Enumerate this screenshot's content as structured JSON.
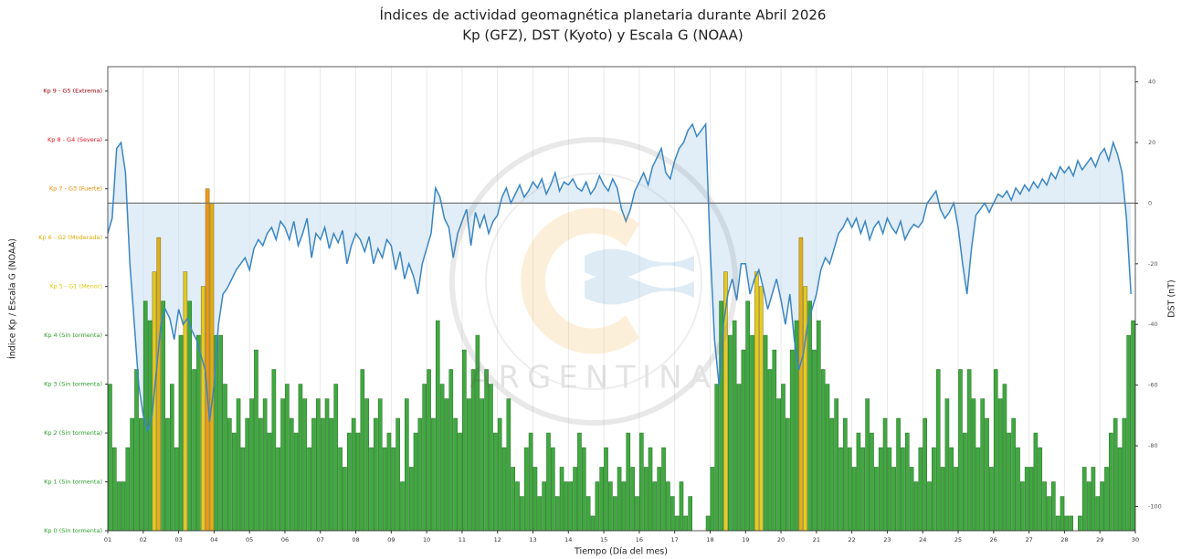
{
  "chart_data": {
    "type": "kp-dst",
    "title": "Índices de actividad geomagnética planetaria durante Abril 2026",
    "subtitle": "Kp (GFZ), DST (Kyoto) y Escala G (NOAA)",
    "xlabel": "Tiempo (Día del mes)",
    "ylabel": "Índice Kp / Escala G (NOAA)",
    "y2label": "DST (nT)",
    "watermark": "ARGENTINA",
    "grid": true,
    "xlim": [
      1,
      30
    ],
    "ylim": [
      0,
      9.5
    ],
    "y2lim": [
      -108,
      45
    ],
    "reference_line": 0,
    "xticks": [
      {
        "value": 1,
        "label": "01"
      },
      {
        "value": 2,
        "label": "02"
      },
      {
        "value": 3,
        "label": "03"
      },
      {
        "value": 4,
        "label": "04"
      },
      {
        "value": 5,
        "label": "05"
      },
      {
        "value": 6,
        "label": "06"
      },
      {
        "value": 7,
        "label": "07"
      },
      {
        "value": 8,
        "label": "08"
      },
      {
        "value": 9,
        "label": "09"
      },
      {
        "value": 10,
        "label": "10"
      },
      {
        "value": 11,
        "label": "11"
      },
      {
        "value": 12,
        "label": "12"
      },
      {
        "value": 13,
        "label": "13"
      },
      {
        "value": 14,
        "label": "14"
      },
      {
        "value": 15,
        "label": "15"
      },
      {
        "value": 16,
        "label": "16"
      },
      {
        "value": 17,
        "label": "17"
      },
      {
        "value": 18,
        "label": "18"
      },
      {
        "value": 19,
        "label": "19"
      },
      {
        "value": 20,
        "label": "20"
      },
      {
        "value": 21,
        "label": "21"
      },
      {
        "value": 22,
        "label": "22"
      },
      {
        "value": 23,
        "label": "23"
      },
      {
        "value": 24,
        "label": "24"
      },
      {
        "value": 25,
        "label": "25"
      },
      {
        "value": 26,
        "label": "26"
      },
      {
        "value": 27,
        "label": "27"
      },
      {
        "value": 28,
        "label": "28"
      },
      {
        "value": 29,
        "label": "29"
      },
      {
        "value": 30,
        "label": "30"
      }
    ],
    "yticks": [
      {
        "value": 0,
        "label": "Kp 0 (Sin tormenta)"
      },
      {
        "value": 1,
        "label": "Kp 1 (Sin tormenta)"
      },
      {
        "value": 2,
        "label": "Kp 2 (Sin tormenta)"
      },
      {
        "value": 3,
        "label": "Kp 3 (Sin tormenta)"
      },
      {
        "value": 4,
        "label": "Kp 4 (Sin tormenta)"
      },
      {
        "value": 5,
        "label": "Kp 5 - G1 (Menor)"
      },
      {
        "value": 6,
        "label": "Kp 6 - G2 (Moderada)"
      },
      {
        "value": 7,
        "label": "Kp 7 - G3 (Fuerte)"
      },
      {
        "value": 8,
        "label": "Kp 8 - G4 (Severa)"
      },
      {
        "value": 9,
        "label": "Kp 9 - G5 (Extrema)"
      }
    ],
    "ytick_colors": [
      "#2ca02c",
      "#2ca02c",
      "#2ca02c",
      "#2ca02c",
      "#2ca02c",
      "#e0c80c",
      "#e0a800",
      "#f08c00",
      "#e8141c",
      "#a00010"
    ],
    "y2ticks": [
      -100,
      -80,
      -60,
      -40,
      -20,
      0,
      20,
      40
    ],
    "x": [
      1,
      1.125,
      1.25,
      1.375,
      1.5,
      1.625,
      1.75,
      1.875,
      2,
      2.125,
      2.25,
      2.375,
      2.5,
      2.625,
      2.75,
      2.875,
      3,
      3.125,
      3.25,
      3.375,
      3.5,
      3.625,
      3.75,
      3.875,
      4,
      4.125,
      4.25,
      4.375,
      4.5,
      4.625,
      4.75,
      4.875,
      5,
      5.125,
      5.25,
      5.375,
      5.5,
      5.625,
      5.75,
      5.875,
      6,
      6.125,
      6.25,
      6.375,
      6.5,
      6.625,
      6.75,
      6.875,
      7,
      7.125,
      7.25,
      7.375,
      7.5,
      7.625,
      7.75,
      7.875,
      8,
      8.125,
      8.25,
      8.375,
      8.5,
      8.625,
      8.75,
      8.875,
      9,
      9.125,
      9.25,
      9.375,
      9.5,
      9.625,
      9.75,
      9.875,
      10,
      10.125,
      10.25,
      10.375,
      10.5,
      10.625,
      10.75,
      10.875,
      11,
      11.125,
      11.25,
      11.375,
      11.5,
      11.625,
      11.75,
      11.875,
      12,
      12.125,
      12.25,
      12.375,
      12.5,
      12.625,
      12.75,
      12.875,
      13,
      13.125,
      13.25,
      13.375,
      13.5,
      13.625,
      13.75,
      13.875,
      14,
      14.125,
      14.25,
      14.375,
      14.5,
      14.625,
      14.75,
      14.875,
      15,
      15.125,
      15.25,
      15.375,
      15.5,
      15.625,
      15.75,
      15.875,
      16,
      16.125,
      16.25,
      16.375,
      16.5,
      16.625,
      16.75,
      16.875,
      17,
      17.125,
      17.25,
      17.375,
      17.5,
      17.625,
      17.75,
      17.875,
      18,
      18.125,
      18.25,
      18.375,
      18.5,
      18.625,
      18.75,
      18.875,
      19,
      19.125,
      19.25,
      19.375,
      19.5,
      19.625,
      19.75,
      19.875,
      20,
      20.125,
      20.25,
      20.375,
      20.5,
      20.625,
      20.75,
      20.875,
      21,
      21.125,
      21.25,
      21.375,
      21.5,
      21.625,
      21.75,
      21.875,
      22,
      22.125,
      22.25,
      22.375,
      22.5,
      22.625,
      22.75,
      22.875,
      23,
      23.125,
      23.25,
      23.375,
      23.5,
      23.625,
      23.75,
      23.875,
      24,
      24.125,
      24.25,
      24.375,
      24.5,
      24.625,
      24.75,
      24.875,
      25,
      25.125,
      25.25,
      25.375,
      25.5,
      25.625,
      25.75,
      25.875,
      26,
      26.125,
      26.25,
      26.375,
      26.5,
      26.625,
      26.75,
      26.875,
      27,
      27.125,
      27.25,
      27.375,
      27.5,
      27.625,
      27.75,
      27.875,
      28,
      28.125,
      28.25,
      28.375,
      28.5,
      28.625,
      28.75,
      28.875,
      29,
      29.125,
      29.25,
      29.375,
      29.5,
      29.625,
      29.75,
      29.875
    ],
    "series": [
      {
        "name": "Kp",
        "color": "#2ca02c",
        "values": [
          3,
          1.7,
          1,
          1,
          1.7,
          2.3,
          3.3,
          2.3,
          4.7,
          4.3,
          5.3,
          6,
          4.7,
          2.3,
          3,
          1.7,
          4,
          5.3,
          4.7,
          3.3,
          4,
          5,
          7,
          6.7,
          4,
          4,
          3,
          2.3,
          2,
          2.7,
          1.7,
          2.3,
          2.7,
          3.7,
          2.3,
          2.7,
          2,
          3.3,
          1.7,
          2.7,
          3,
          2.3,
          2,
          3,
          2.7,
          1.7,
          2.3,
          2.7,
          2.3,
          2.7,
          2.3,
          3,
          1.7,
          1.3,
          2,
          2.3,
          2,
          3.3,
          2.7,
          1.7,
          2.3,
          2.7,
          1.7,
          2,
          1.7,
          2.3,
          1,
          2.7,
          1.3,
          2,
          2.3,
          3,
          3.3,
          2.3,
          4.3,
          3,
          2.7,
          3.3,
          2.3,
          2,
          3.7,
          2.7,
          3.3,
          4,
          2.7,
          3.3,
          3,
          2,
          2.3,
          1.7,
          2.7,
          1.3,
          1,
          0.7,
          1.7,
          2,
          1.3,
          0.7,
          1,
          2,
          1.7,
          0.7,
          1.3,
          1,
          1,
          1.3,
          2,
          1.7,
          0.7,
          0.3,
          1,
          1.3,
          1.7,
          1,
          0.7,
          1.3,
          1,
          2,
          1.3,
          0.7,
          2,
          1.3,
          1.7,
          1,
          1.3,
          1.7,
          1,
          0.7,
          0.3,
          1,
          0.3,
          0.7,
          0,
          0,
          0,
          0.3,
          1.3,
          3,
          4.7,
          5.3,
          4,
          4.3,
          3,
          3.7,
          4.7,
          4,
          5.3,
          5,
          4,
          3.3,
          3.7,
          2.7,
          3,
          2.3,
          3.7,
          4.3,
          6,
          5,
          4.7,
          3.7,
          4.3,
          3.3,
          3,
          2.3,
          2.7,
          1.7,
          2.3,
          1.7,
          1.3,
          2,
          1.7,
          2.7,
          2,
          1.3,
          1.7,
          2.3,
          1.7,
          1.3,
          2.3,
          1.7,
          2,
          1.3,
          1,
          1.7,
          2.3,
          1,
          1.7,
          3.3,
          1.3,
          2.7,
          1.7,
          1.3,
          3.3,
          2,
          3.3,
          2.7,
          1.7,
          2.7,
          2.3,
          1.3,
          3.3,
          2.7,
          3,
          2,
          2.3,
          1.7,
          1,
          1.3,
          1.3,
          2,
          1.7,
          1,
          0.7,
          1,
          0.3,
          0.7,
          0.3,
          0.3,
          0,
          0.3,
          1.3,
          1,
          1.3,
          0.7,
          1,
          1.3,
          2,
          2.3,
          1.7,
          2.3,
          4,
          4.3
        ]
      },
      {
        "name": "DST",
        "color": "#3a86c4",
        "axis": "y2",
        "values": [
          -10,
          -5,
          18,
          20,
          10,
          -20,
          -40,
          -60,
          -70,
          -75,
          -70,
          -55,
          -40,
          -35,
          -38,
          -45,
          -35,
          -40,
          -38,
          -42,
          -45,
          -50,
          -55,
          -72,
          -60,
          -40,
          -30,
          -28,
          -25,
          -22,
          -20,
          -18,
          -22,
          -15,
          -12,
          -14,
          -10,
          -8,
          -12,
          -6,
          -8,
          -12,
          -6,
          -14,
          -10,
          -5,
          -18,
          -10,
          -12,
          -8,
          -15,
          -10,
          -13,
          -9,
          -20,
          -14,
          -10,
          -12,
          -16,
          -11,
          -20,
          -15,
          -18,
          -12,
          -14,
          -22,
          -16,
          -25,
          -20,
          -24,
          -30,
          -20,
          -15,
          -10,
          5,
          2,
          -5,
          -8,
          -18,
          -10,
          -6,
          -2,
          -14,
          -3,
          -8,
          -4,
          -10,
          -6,
          -4,
          2,
          5,
          0,
          3,
          6,
          2,
          4,
          7,
          5,
          8,
          3,
          6,
          10,
          4,
          7,
          6,
          8,
          5,
          4,
          7,
          3,
          5,
          9,
          6,
          4,
          8,
          5,
          -2,
          -6,
          -2,
          4,
          7,
          10,
          6,
          12,
          15,
          18,
          10,
          8,
          14,
          18,
          20,
          24,
          26,
          22,
          24,
          26,
          -15,
          -45,
          -60,
          -40,
          -30,
          -25,
          -32,
          -20,
          -20,
          -30,
          -25,
          -22,
          -28,
          -35,
          -30,
          -25,
          -32,
          -40,
          -30,
          -45,
          -55,
          -50,
          -40,
          -35,
          -30,
          -22,
          -18,
          -20,
          -15,
          -10,
          -8,
          -5,
          -8,
          -5,
          -10,
          -6,
          -12,
          -8,
          -6,
          -10,
          -5,
          -8,
          -10,
          -6,
          -12,
          -9,
          -7,
          -8,
          -6,
          0,
          2,
          4,
          -2,
          -5,
          -3,
          0,
          -8,
          -20,
          -30,
          -15,
          -4,
          -2,
          0,
          -3,
          0,
          3,
          2,
          4,
          1,
          5,
          3,
          6,
          4,
          7,
          5,
          8,
          6,
          10,
          8,
          12,
          10,
          12,
          9,
          14,
          11,
          13,
          15,
          12,
          16,
          18,
          14,
          20,
          16,
          10,
          -5,
          -30
        ]
      }
    ]
  }
}
